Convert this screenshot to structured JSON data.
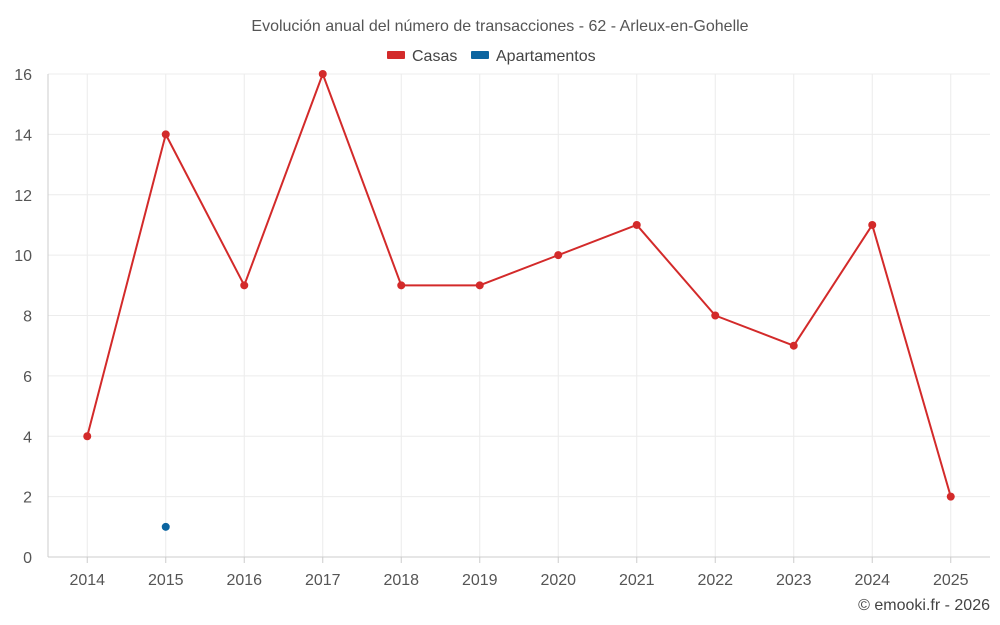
{
  "chart_data": {
    "type": "line",
    "title": "Evolución anual del número de transacciones - 62 - Arleux-en-Gohelle",
    "categories": [
      "2014",
      "2015",
      "2016",
      "2017",
      "2018",
      "2019",
      "2020",
      "2021",
      "2022",
      "2023",
      "2024",
      "2025"
    ],
    "series": [
      {
        "name": "Casas",
        "color": "#d32a2a",
        "values": [
          4,
          14,
          9,
          16,
          9,
          9,
          10,
          11,
          8,
          7,
          11,
          2
        ]
      },
      {
        "name": "Apartamentos",
        "color": "#0b64a0",
        "values": [
          null,
          1,
          null,
          null,
          null,
          null,
          null,
          null,
          null,
          null,
          null,
          null
        ]
      }
    ],
    "yticks": [
      "0",
      "2",
      "4",
      "6",
      "8",
      "10",
      "12",
      "14",
      "16"
    ],
    "ylim": [
      0,
      16
    ],
    "xlabel": "",
    "ylabel": "",
    "grid": true,
    "legend_position": "top-center"
  },
  "credit": "© emooki.fr - 2026"
}
